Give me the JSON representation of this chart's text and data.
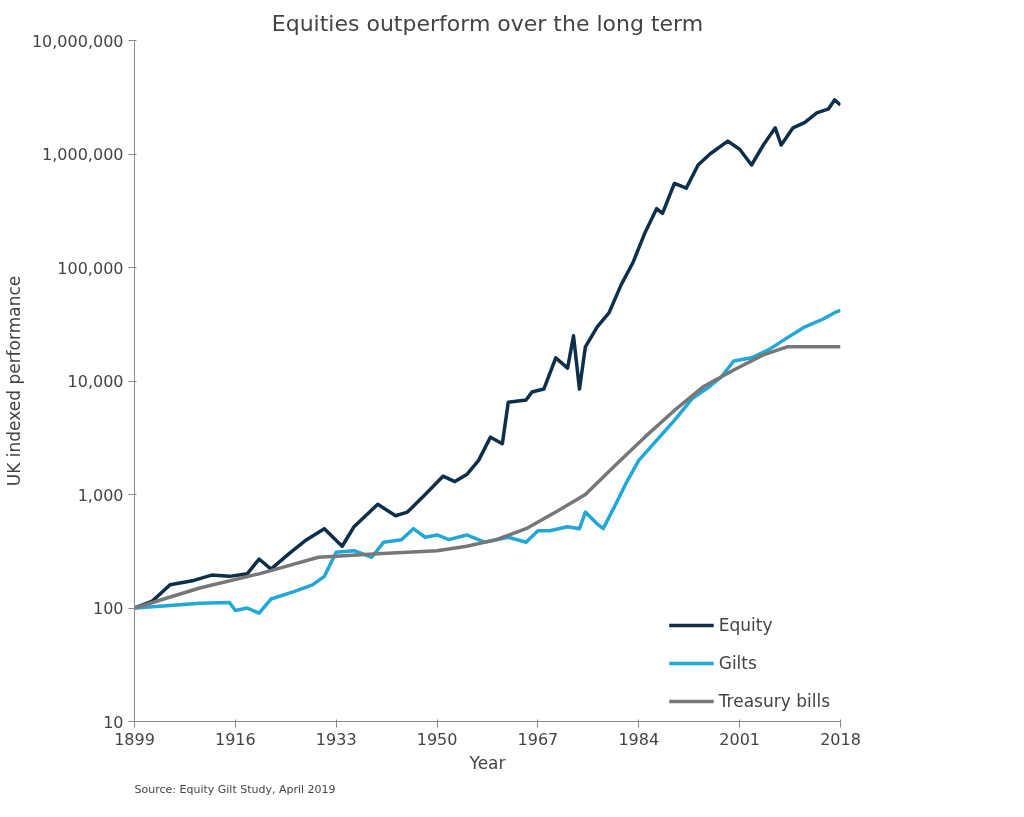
{
  "chart_data": {
    "type": "line",
    "title": "Equities outperform over the long term",
    "xlabel": "Year",
    "ylabel": "UK indexed performance",
    "annotations": [
      "Source: Equity Gilt Study, April 2019"
    ],
    "log": "y",
    "grid": false,
    "legend": "bottom right",
    "line_style": "solid",
    "xlim": [
      1899,
      2018
    ],
    "xticks": [
      1899,
      1916,
      1933,
      1950,
      1967,
      1984,
      2001,
      2018
    ],
    "ylim": [
      10,
      10000000
    ],
    "yticks": [
      {
        "value": 10,
        "label": "10"
      },
      {
        "value": 100,
        "label": "100"
      },
      {
        "value": 1000,
        "label": "1,000"
      },
      {
        "value": 10000,
        "label": "10,000"
      },
      {
        "value": 100000,
        "label": "100,000"
      },
      {
        "value": 1000000,
        "label": "1,000,000"
      },
      {
        "value": 10000000,
        "label": "10,000,000"
      }
    ],
    "series": [
      {
        "name": "Equity",
        "color": "#0d2f4a",
        "x": [
          1899,
          1902,
          1905,
          1909,
          1912,
          1915,
          1918,
          1920,
          1922,
          1925,
          1928,
          1931,
          1934,
          1936,
          1940,
          1943,
          1945,
          1948,
          1951,
          1953,
          1955,
          1957,
          1959,
          1961,
          1962,
          1965,
          1966,
          1968,
          1970,
          1972,
          1973,
          1974,
          1975,
          1977,
          1979,
          1981,
          1983,
          1985,
          1987,
          1988,
          1990,
          1992,
          1994,
          1996,
          1999,
          2001,
          2003,
          2005,
          2007,
          2008,
          2010,
          2012,
          2014,
          2016,
          2017,
          2018
        ],
        "values": [
          100,
          115,
          160,
          175,
          195,
          190,
          200,
          270,
          220,
          300,
          400,
          500,
          350,
          520,
          820,
          650,
          700,
          1000,
          1450,
          1300,
          1500,
          2000,
          3200,
          2800,
          6500,
          6800,
          8000,
          8500,
          16000,
          13000,
          25000,
          8500,
          20000,
          30000,
          40000,
          70000,
          110000,
          200000,
          330000,
          300000,
          550000,
          500000,
          800000,
          1000000,
          1300000,
          1100000,
          800000,
          1200000,
          1700000,
          1200000,
          1700000,
          1900000,
          2300000,
          2500000,
          3000000,
          2700000
        ]
      },
      {
        "name": "Gilts",
        "color": "#22a8d8",
        "x": [
          1899,
          1905,
          1910,
          1915,
          1916,
          1918,
          1920,
          1922,
          1926,
          1929,
          1931,
          1933,
          1936,
          1939,
          1941,
          1944,
          1946,
          1948,
          1950,
          1952,
          1955,
          1958,
          1962,
          1965,
          1967,
          1969,
          1972,
          1974,
          1975,
          1977,
          1978,
          1980,
          1982,
          1984,
          1987,
          1990,
          1993,
          1996,
          1998,
          2000,
          2003,
          2006,
          2009,
          2012,
          2015,
          2017,
          2018
        ],
        "values": [
          100,
          105,
          110,
          112,
          95,
          100,
          90,
          120,
          140,
          160,
          190,
          310,
          320,
          280,
          380,
          400,
          500,
          420,
          440,
          400,
          440,
          380,
          420,
          380,
          480,
          480,
          520,
          500,
          700,
          550,
          500,
          800,
          1300,
          2000,
          3000,
          4500,
          7000,
          9000,
          11000,
          15000,
          16000,
          19000,
          24000,
          30000,
          35000,
          40000,
          42000
        ]
      },
      {
        "name": "Treasury bills",
        "color": "#777777",
        "x": [
          1899,
          1910,
          1920,
          1930,
          1940,
          1950,
          1955,
          1960,
          1965,
          1970,
          1975,
          1980,
          1985,
          1990,
          1995,
          2000,
          2005,
          2009,
          2018
        ],
        "values": [
          100,
          150,
          200,
          280,
          300,
          320,
          350,
          400,
          500,
          700,
          1000,
          1800,
          3200,
          5500,
          9000,
          12500,
          17000,
          20000,
          20000
        ]
      }
    ]
  }
}
